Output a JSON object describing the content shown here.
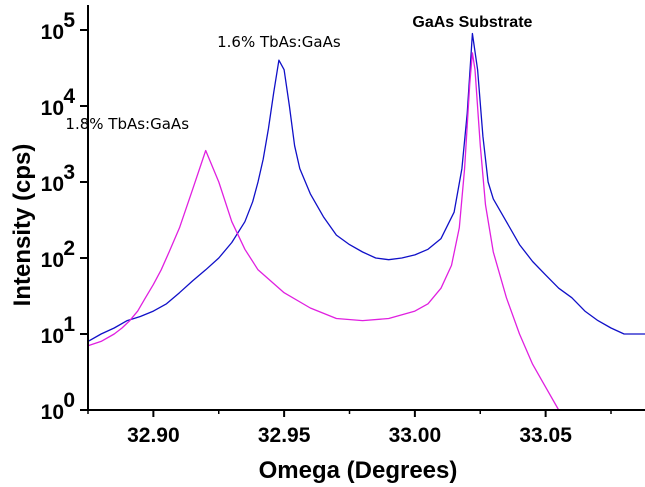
{
  "chart_data": {
    "type": "line",
    "xlabel": "Omega (Degrees)",
    "ylabel": "Intensity (cps)",
    "xlim": [
      32.875,
      33.088
    ],
    "ylim": [
      1,
      100000
    ],
    "yscale": "log",
    "x_ticks": [
      32.9,
      32.95,
      33.0,
      33.05
    ],
    "x_tick_labels": [
      "32.90",
      "32.95",
      "33.00",
      "33.05"
    ],
    "y_ticks": [
      1,
      10,
      100,
      1000,
      10000,
      100000
    ],
    "y_tick_labels": [
      {
        "base": "10",
        "exp": "0"
      },
      {
        "base": "10",
        "exp": "1"
      },
      {
        "base": "10",
        "exp": "2"
      },
      {
        "base": "10",
        "exp": "3"
      },
      {
        "base": "10",
        "exp": "4"
      },
      {
        "base": "10",
        "exp": "5"
      }
    ],
    "grid": false,
    "annotations": [
      {
        "text": "1.8% TbAs:GaAs",
        "x": 32.89,
        "y": 5000
      },
      {
        "text": "1.6% TbAs:GaAs",
        "x": 32.948,
        "y": 60000
      },
      {
        "text": "GaAs Substrate",
        "x": 33.022,
        "y": 110000
      }
    ],
    "series": [
      {
        "color": "#1010c8",
        "x": [
          32.875,
          32.88,
          32.885,
          32.89,
          32.895,
          32.9,
          32.905,
          32.91,
          32.915,
          32.92,
          32.925,
          32.93,
          32.935,
          32.938,
          32.94,
          32.942,
          32.944,
          32.946,
          32.948,
          32.95,
          32.952,
          32.954,
          32.956,
          32.96,
          32.965,
          32.97,
          32.975,
          32.98,
          32.985,
          32.99,
          32.995,
          33.0,
          33.005,
          33.01,
          33.015,
          33.018,
          33.02,
          33.022,
          33.024,
          33.026,
          33.028,
          33.03,
          33.035,
          33.04,
          33.045,
          33.05,
          33.055,
          33.06,
          33.065,
          33.07,
          33.075,
          33.08,
          33.088
        ],
        "y": [
          8,
          10,
          12,
          15,
          17,
          20,
          25,
          35,
          50,
          70,
          100,
          160,
          300,
          550,
          1000,
          2000,
          5000,
          15000,
          40000,
          30000,
          10000,
          3000,
          1500,
          700,
          350,
          200,
          150,
          120,
          100,
          95,
          100,
          110,
          130,
          180,
          400,
          1500,
          8000,
          90000,
          30000,
          4000,
          1000,
          600,
          300,
          150,
          90,
          60,
          40,
          30,
          20,
          15,
          12,
          10,
          10
        ]
      },
      {
        "color": "#e020e0",
        "x": [
          32.875,
          32.88,
          32.885,
          32.888,
          32.891,
          32.894,
          32.897,
          32.9,
          32.903,
          32.906,
          32.91,
          32.915,
          32.92,
          32.925,
          32.93,
          32.935,
          32.94,
          32.95,
          32.96,
          32.97,
          32.98,
          32.99,
          33.0,
          33.005,
          33.01,
          33.014,
          33.017,
          33.019,
          33.021,
          33.022,
          33.023,
          33.025,
          33.027,
          33.03,
          33.035,
          33.04,
          33.045,
          33.05,
          33.055
        ],
        "y": [
          7,
          8,
          10,
          12,
          15,
          20,
          30,
          45,
          70,
          120,
          250,
          800,
          2600,
          1000,
          300,
          130,
          70,
          35,
          22,
          16,
          15,
          16,
          20,
          25,
          40,
          80,
          250,
          1500,
          20000,
          50000,
          30000,
          3000,
          500,
          120,
          30,
          10,
          4,
          2,
          1
        ]
      }
    ]
  }
}
